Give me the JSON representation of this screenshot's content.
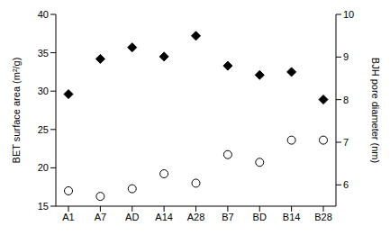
{
  "chart_data": {
    "type": "scatter",
    "categories": [
      "A1",
      "A7",
      "AD",
      "A14",
      "A28",
      "B7",
      "BD",
      "B14",
      "B28"
    ],
    "ylabel": "BET surface area (m²/g)",
    "y2label": "BJH pore diameter (nm)",
    "ylim": [
      15,
      40
    ],
    "yticks": [
      15,
      20,
      25,
      30,
      35,
      40
    ],
    "y2lim": [
      5.5,
      10
    ],
    "y2ticks": [
      6,
      7,
      8,
      9,
      10
    ],
    "grid": false,
    "series": [
      {
        "color": "#000000",
        "marker": "diamond",
        "values": [
          29.6,
          34.2,
          35.7,
          34.5,
          37.2,
          33.3,
          32.1,
          32.5,
          28.9
        ]
      },
      {
        "color": "#000000",
        "marker": "open_circle",
        "axis": "y2",
        "values": [
          5.86,
          5.73,
          5.91,
          6.26,
          6.04,
          6.71,
          6.53,
          7.05,
          7.05
        ]
      }
    ]
  }
}
